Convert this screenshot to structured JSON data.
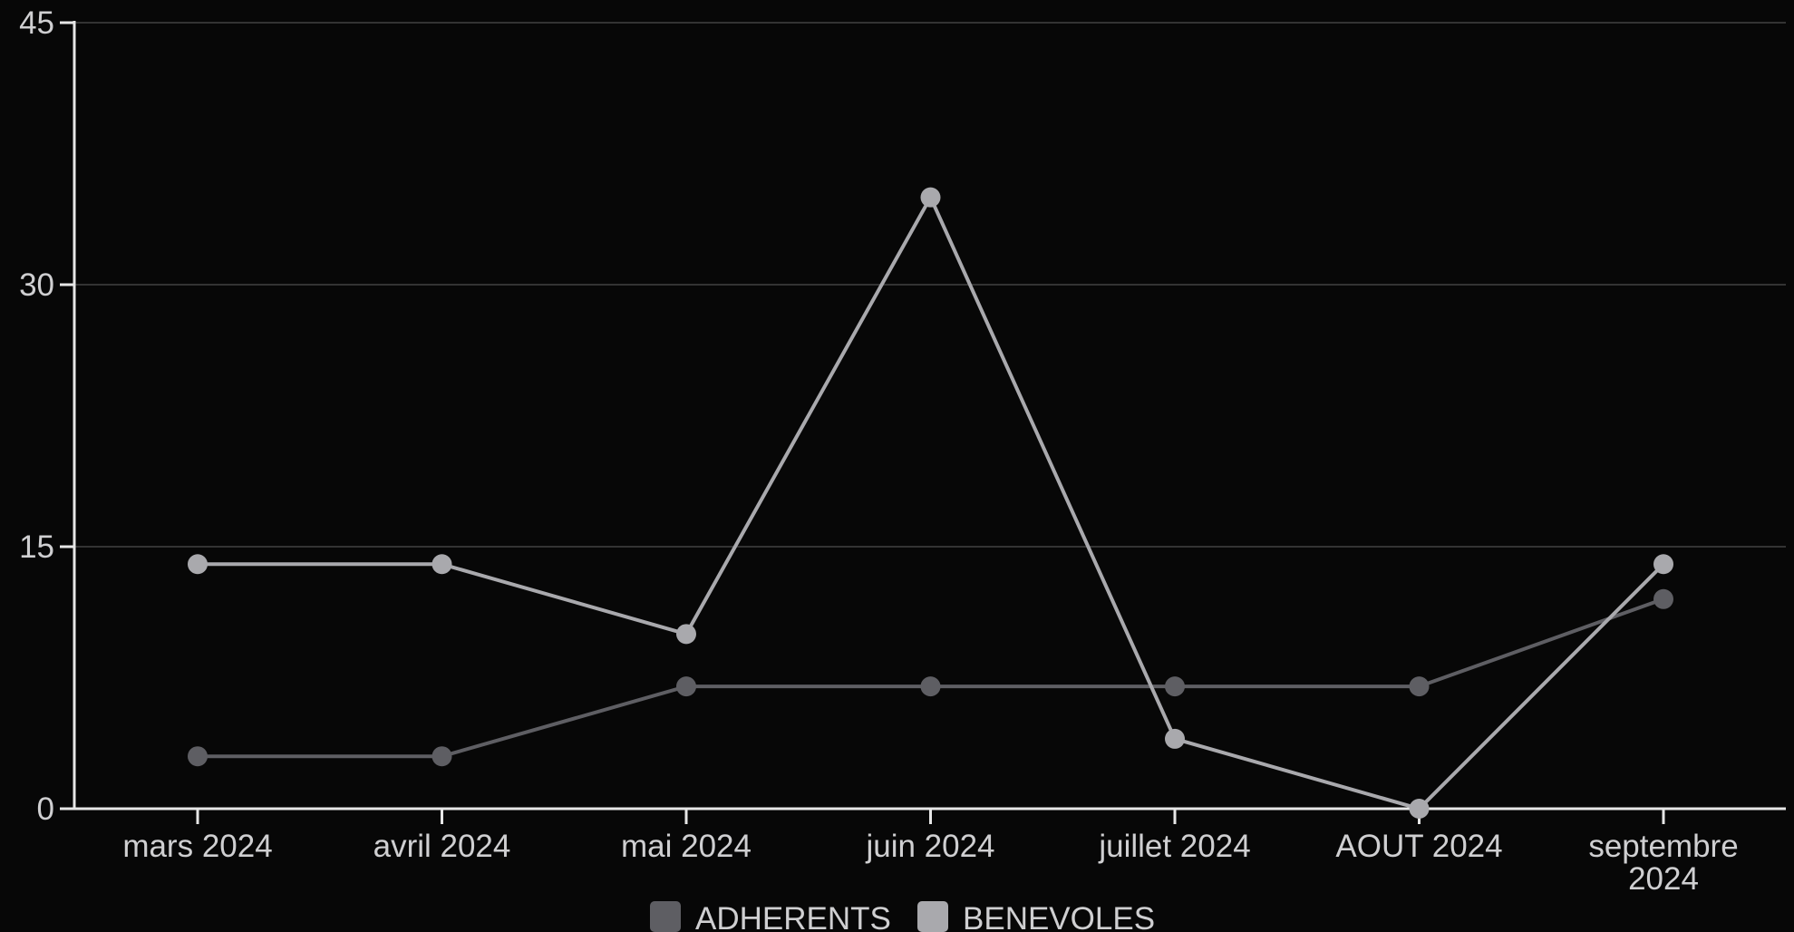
{
  "chart_data": {
    "type": "line",
    "categories": [
      "mars 2024",
      "avril 2024",
      "mai 2024",
      "juin 2024",
      "juillet 2024",
      "AOUT 2024",
      "septembre 2024"
    ],
    "category_lines": [
      [
        "mars 2024"
      ],
      [
        "avril 2024"
      ],
      [
        "mai 2024"
      ],
      [
        "juin 2024"
      ],
      [
        "juillet 2024"
      ],
      [
        "AOUT 2024"
      ],
      [
        "septembre",
        "2024"
      ]
    ],
    "series": [
      {
        "name": "ADHERENTS",
        "values": [
          3,
          3,
          7,
          7,
          7,
          7,
          12
        ],
        "color": "#5e5e63"
      },
      {
        "name": "BENEVOLES",
        "values": [
          14,
          14,
          10,
          35,
          4,
          0,
          14
        ],
        "color": "#a9a9ad"
      }
    ],
    "ylim": [
      0,
      45
    ],
    "yticks": [
      "0",
      "15",
      "30",
      "45"
    ],
    "grid": true,
    "legend_position": "bottom-center",
    "background": "#070707",
    "axis_color": "#e6e6e6",
    "grid_color": "#333333"
  }
}
